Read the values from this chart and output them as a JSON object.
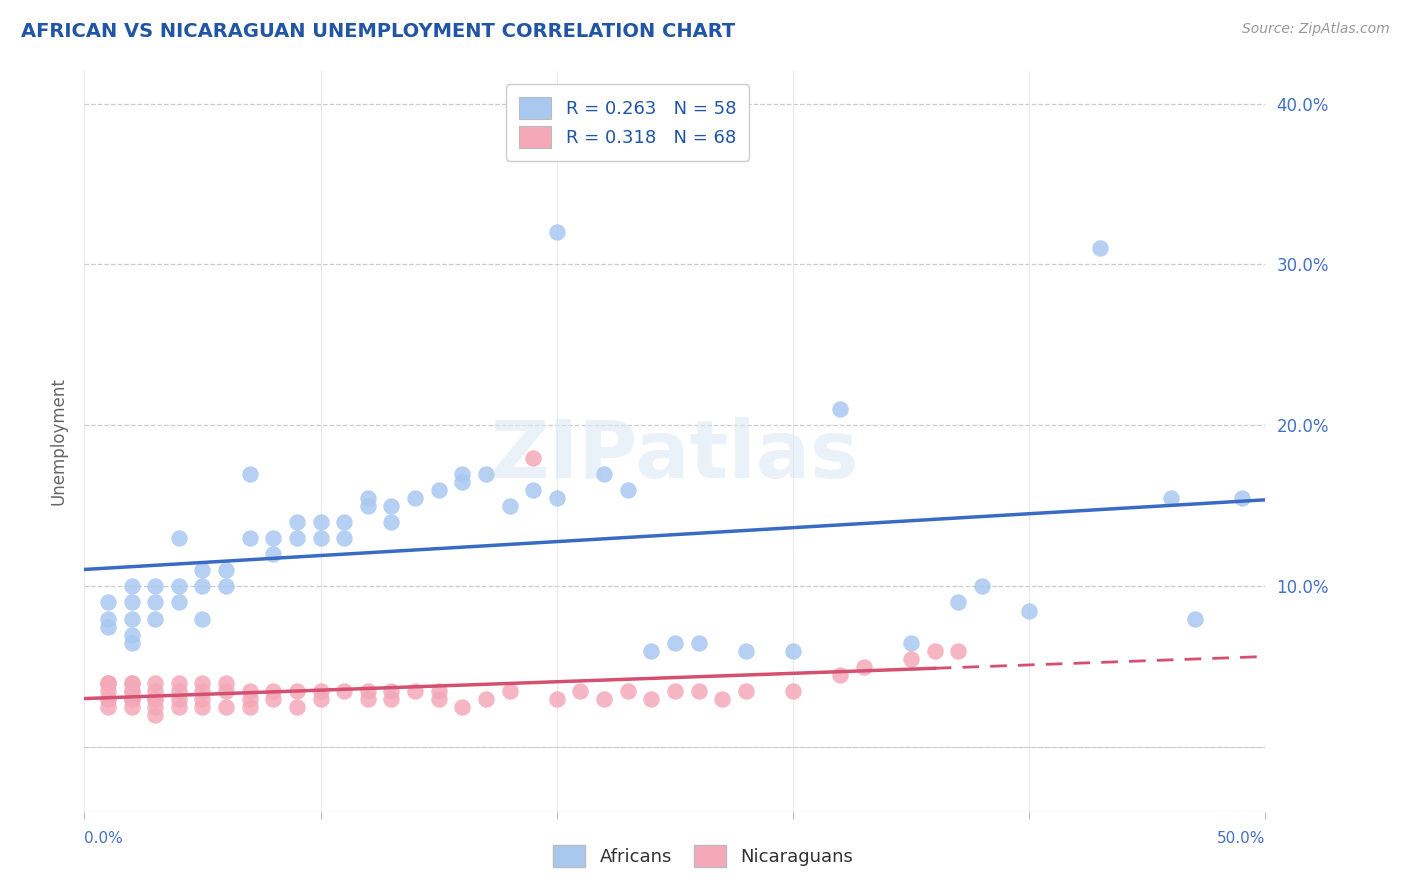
{
  "title": "AFRICAN VS NICARAGUAN UNEMPLOYMENT CORRELATION CHART",
  "source": "Source: ZipAtlas.com",
  "ylabel": "Unemployment",
  "xlim": [
    0.0,
    0.5
  ],
  "ylim": [
    -0.04,
    0.42
  ],
  "yticks": [
    0.0,
    0.1,
    0.2,
    0.3,
    0.4
  ],
  "african_color": "#a8c8f0",
  "nicaraguan_color": "#f4a8b8",
  "african_line_color": "#3a6bc4",
  "nicaraguan_line_color": "#d45070",
  "legend_r1": "R = 0.263   N = 58",
  "legend_r2": "R = 0.318   N = 68",
  "africans_x": [
    0.01,
    0.01,
    0.01,
    0.02,
    0.02,
    0.02,
    0.02,
    0.02,
    0.03,
    0.03,
    0.03,
    0.04,
    0.04,
    0.04,
    0.05,
    0.05,
    0.05,
    0.06,
    0.06,
    0.07,
    0.07,
    0.08,
    0.08,
    0.09,
    0.09,
    0.1,
    0.1,
    0.11,
    0.11,
    0.12,
    0.12,
    0.13,
    0.13,
    0.14,
    0.15,
    0.16,
    0.16,
    0.17,
    0.18,
    0.19,
    0.2,
    0.2,
    0.22,
    0.23,
    0.24,
    0.25,
    0.26,
    0.28,
    0.3,
    0.32,
    0.35,
    0.37,
    0.38,
    0.4,
    0.43,
    0.46,
    0.47,
    0.49
  ],
  "africans_y": [
    0.08,
    0.075,
    0.09,
    0.08,
    0.09,
    0.07,
    0.1,
    0.065,
    0.09,
    0.08,
    0.1,
    0.1,
    0.09,
    0.13,
    0.11,
    0.08,
    0.1,
    0.1,
    0.11,
    0.17,
    0.13,
    0.12,
    0.13,
    0.13,
    0.14,
    0.14,
    0.13,
    0.14,
    0.13,
    0.15,
    0.155,
    0.15,
    0.14,
    0.155,
    0.16,
    0.165,
    0.17,
    0.17,
    0.15,
    0.16,
    0.32,
    0.155,
    0.17,
    0.16,
    0.06,
    0.065,
    0.065,
    0.06,
    0.06,
    0.21,
    0.065,
    0.09,
    0.1,
    0.085,
    0.31,
    0.155,
    0.08,
    0.155
  ],
  "nicaraguans_x": [
    0.01,
    0.01,
    0.01,
    0.01,
    0.01,
    0.01,
    0.01,
    0.02,
    0.02,
    0.02,
    0.02,
    0.02,
    0.02,
    0.02,
    0.02,
    0.03,
    0.03,
    0.03,
    0.03,
    0.03,
    0.03,
    0.04,
    0.04,
    0.04,
    0.04,
    0.05,
    0.05,
    0.05,
    0.05,
    0.06,
    0.06,
    0.06,
    0.07,
    0.07,
    0.07,
    0.08,
    0.08,
    0.09,
    0.09,
    0.1,
    0.1,
    0.11,
    0.12,
    0.12,
    0.13,
    0.13,
    0.14,
    0.15,
    0.15,
    0.16,
    0.17,
    0.18,
    0.19,
    0.2,
    0.21,
    0.22,
    0.23,
    0.24,
    0.25,
    0.26,
    0.27,
    0.28,
    0.3,
    0.32,
    0.33,
    0.35,
    0.36,
    0.37
  ],
  "nicaraguans_y": [
    0.04,
    0.03,
    0.04,
    0.03,
    0.035,
    0.04,
    0.025,
    0.035,
    0.03,
    0.04,
    0.03,
    0.035,
    0.025,
    0.04,
    0.03,
    0.035,
    0.03,
    0.04,
    0.025,
    0.02,
    0.03,
    0.035,
    0.03,
    0.025,
    0.04,
    0.03,
    0.025,
    0.035,
    0.04,
    0.025,
    0.035,
    0.04,
    0.03,
    0.025,
    0.035,
    0.035,
    0.03,
    0.035,
    0.025,
    0.035,
    0.03,
    0.035,
    0.035,
    0.03,
    0.035,
    0.03,
    0.035,
    0.03,
    0.035,
    0.025,
    0.03,
    0.035,
    0.18,
    0.03,
    0.035,
    0.03,
    0.035,
    0.03,
    0.035,
    0.035,
    0.03,
    0.035,
    0.035,
    0.045,
    0.05,
    0.055,
    0.06,
    0.06
  ]
}
